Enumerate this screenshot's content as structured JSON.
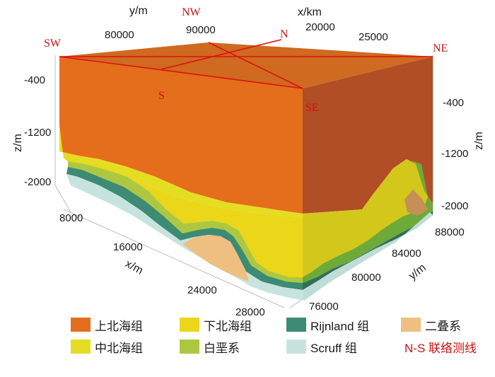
{
  "axes": {
    "y_title_top": "y/m",
    "x_title_top": "x/km",
    "z_title_left": "z/m",
    "z_title_right": "z/m",
    "x_title_bottom": "x/m",
    "y_title_right": "y/m",
    "top_y_ticks": [
      "80000",
      "90000"
    ],
    "top_x_ticks": [
      "20000",
      "25000"
    ],
    "left_z_ticks": [
      "-400",
      "-1200",
      "-2000"
    ],
    "right_z_ticks": [
      "-400",
      "-1200",
      "-2000"
    ],
    "bottom_x_ticks": [
      "8000",
      "16000",
      "24000",
      "28000"
    ],
    "right_y_ticks": [
      "88000",
      "84000",
      "80000",
      "76000"
    ]
  },
  "corners": {
    "sw": "SW",
    "nw": "NW",
    "n": "N",
    "ne": "NE",
    "s": "S",
    "se": "SE"
  },
  "legend": {
    "items": [
      {
        "label": "上北海组",
        "color": "#e46e1c"
      },
      {
        "label": "下北海组",
        "color": "#ebd619"
      },
      {
        "label": "Rijnland 组",
        "color": "#3d8b72"
      },
      {
        "label": "二叠系",
        "color": "#efbf82"
      },
      {
        "label": "中北海组",
        "color": "#e5dd22"
      },
      {
        "label": "白垩系",
        "color": "#adc840"
      },
      {
        "label": "Scruff 组",
        "color": "#c7e3de"
      }
    ],
    "line_label": "N-S 联络测线"
  },
  "colors": {
    "upper_north_sea": "#e46e1c",
    "upper_north_sea_dark": "#b14e25",
    "middle_north_sea": "#e5dd22",
    "lower_north_sea": "#ebd619",
    "cretaceous": "#adc840",
    "rijnland": "#3d8b72",
    "scruff": "#c7e3de",
    "permian": "#efbf82",
    "survey_line": "#dd1111"
  }
}
